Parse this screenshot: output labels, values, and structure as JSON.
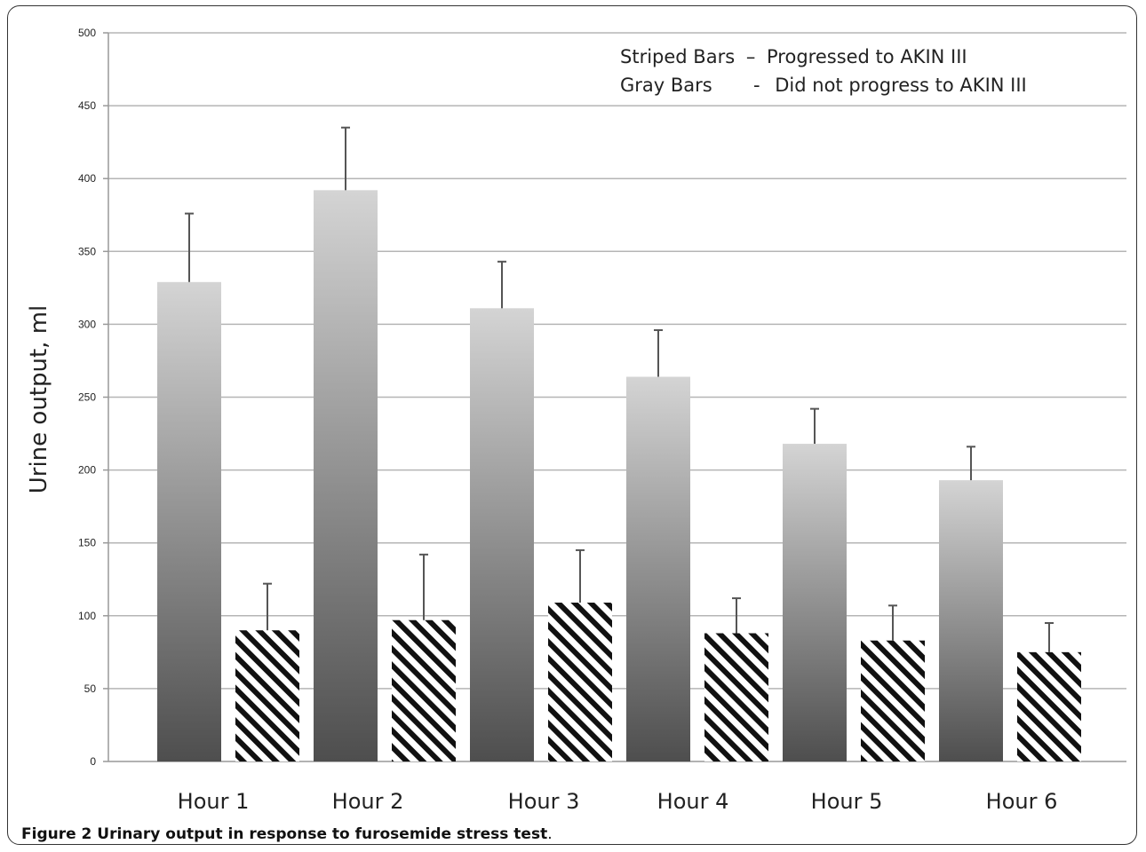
{
  "chart_data": {
    "type": "bar",
    "title": "",
    "xlabel": "",
    "ylabel": "Urine output, ml",
    "ylim": [
      0,
      500
    ],
    "yticks": [
      0,
      50,
      100,
      150,
      200,
      250,
      300,
      350,
      400,
      450,
      500
    ],
    "grid": true,
    "categories": [
      "Hour 1",
      "Hour 2",
      "Hour 3",
      "Hour 4",
      "Hour 5",
      "Hour 6"
    ],
    "series": [
      {
        "style": "gray-gradient",
        "values": [
          329,
          392,
          311,
          264,
          218,
          193
        ],
        "error_upper": [
          47,
          43,
          32,
          32,
          24,
          23
        ]
      },
      {
        "style": "striped",
        "values": [
          90,
          97,
          109,
          88,
          83,
          75
        ],
        "error_upper": [
          32,
          45,
          36,
          24,
          24,
          20
        ]
      }
    ],
    "legend": {
      "placement": "top-right",
      "lines": [
        {
          "key": "Striped Bars",
          "sep": "–",
          "text": "Progressed to AKIN III"
        },
        {
          "key": "Gray Bars",
          "sep": "-",
          "text": "Did not progress to AKIN III"
        }
      ]
    }
  },
  "caption": {
    "bold": "Figure 2 Urinary output in response to furosemide stress test",
    "rest": "."
  },
  "colors": {
    "gradient_top": "#d4d4d4",
    "gradient_bottom": "#4e4e4e",
    "grid": "#b5b5b5",
    "axis": "#999999",
    "error_bar": "#555555",
    "stripe": "#111111"
  }
}
